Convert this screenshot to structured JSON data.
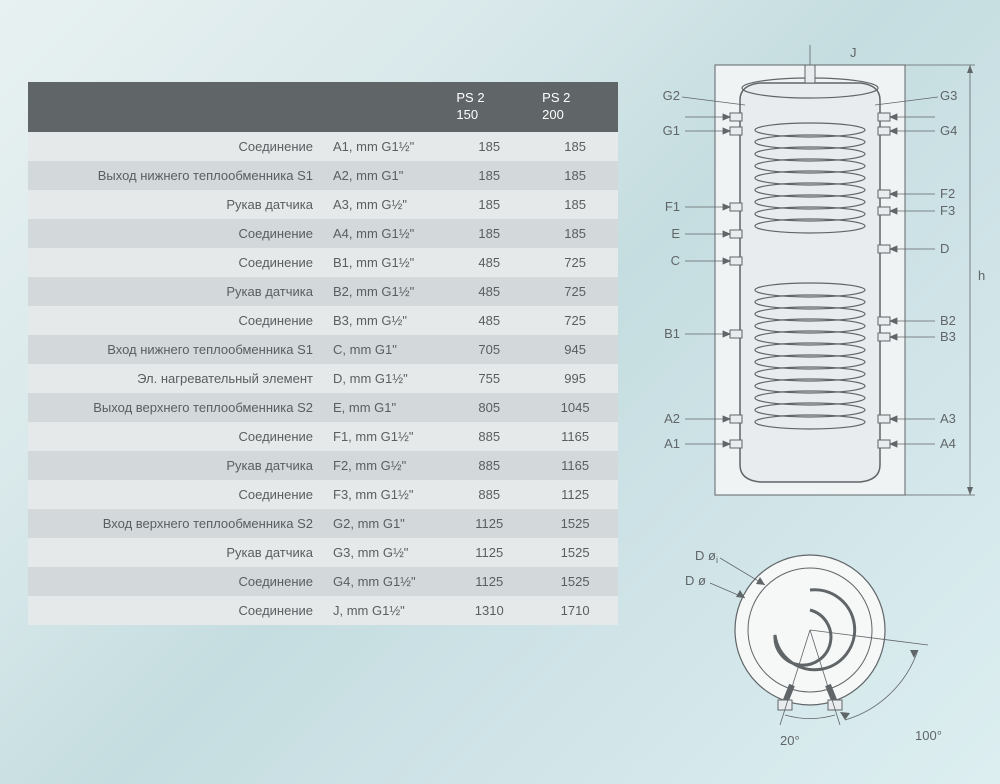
{
  "table": {
    "header": {
      "col1": "",
      "col2": "",
      "model1_line1": "PS 2",
      "model1_line2": "150",
      "model2_line1": "PS 2",
      "model2_line2": "200"
    },
    "rows": [
      {
        "desc": "Соединение",
        "spec": "A1, mm G1½\"",
        "v1": "185",
        "v2": "185"
      },
      {
        "desc": "Выход нижнего теплообменника S1",
        "spec": "A2, mm G1\"",
        "v1": "185",
        "v2": "185"
      },
      {
        "desc": "Рукав датчика",
        "spec": "A3, mm G½\"",
        "v1": "185",
        "v2": "185"
      },
      {
        "desc": "Соединение",
        "spec": "A4, mm G1½\"",
        "v1": "185",
        "v2": "185"
      },
      {
        "desc": "Соединение",
        "spec": "B1, mm G1½\"",
        "v1": "485",
        "v2": "725"
      },
      {
        "desc": "Рукав датчика",
        "spec": "B2, mm G1½\"",
        "v1": "485",
        "v2": "725"
      },
      {
        "desc": "Соединение",
        "spec": "B3, mm G½\"",
        "v1": "485",
        "v2": "725"
      },
      {
        "desc": "Вход нижнего теплообменника S1",
        "spec": "C, mm G1\"",
        "v1": "705",
        "v2": "945"
      },
      {
        "desc": "Эл. нагревательный элемент",
        "spec": "D, mm G1½\"",
        "v1": "755",
        "v2": "995"
      },
      {
        "desc": "Выход верхнего теплообменника S2",
        "spec": "E, mm G1\"",
        "v1": "805",
        "v2": "1045"
      },
      {
        "desc": "Соединение",
        "spec": "F1, mm G1½\"",
        "v1": "885",
        "v2": "1165"
      },
      {
        "desc": "Рукав датчика",
        "spec": "F2, mm G½\"",
        "v1": "885",
        "v2": "1165"
      },
      {
        "desc": "Соединение",
        "spec": "F3, mm G1½\"",
        "v1": "885",
        "v2": "1125"
      },
      {
        "desc": "Вход верхнего теплообменника S2",
        "spec": "G2, mm G1\"",
        "v1": "1125",
        "v2": "1525"
      },
      {
        "desc": "Рукав датчика",
        "spec": "G3, mm G½\"",
        "v1": "1125",
        "v2": "1525"
      },
      {
        "desc": "Соединение",
        "spec": "G4, mm G1½\"",
        "v1": "1125",
        "v2": "1525"
      },
      {
        "desc": "Соединение",
        "spec": "J, mm G1½\"",
        "v1": "1310",
        "v2": "1710"
      }
    ]
  },
  "diagram": {
    "tank": {
      "labels_left": [
        "G2",
        "G1",
        "F1",
        "E",
        "C",
        "B1",
        "A2",
        "A1"
      ],
      "labels_right": [
        "G3",
        "G4",
        "F2",
        "F3",
        "D",
        "B2",
        "B3",
        "A3",
        "A4"
      ],
      "label_top": "J",
      "label_height": "h",
      "stroke_color": "#606568",
      "fill_color": "#e8ecee",
      "background": "#f0f3f4"
    },
    "topview": {
      "label_di": "D ø",
      "label_do": "D ø",
      "label_doi_sub": "i",
      "angle1": "20°",
      "angle2": "100°"
    },
    "colors": {
      "text": "#606568",
      "header_bg": "#606568",
      "header_text": "#ffffff",
      "row_odd": "#e5e9ea",
      "row_even": "#d3d8da"
    },
    "font_size_labels": 13
  }
}
